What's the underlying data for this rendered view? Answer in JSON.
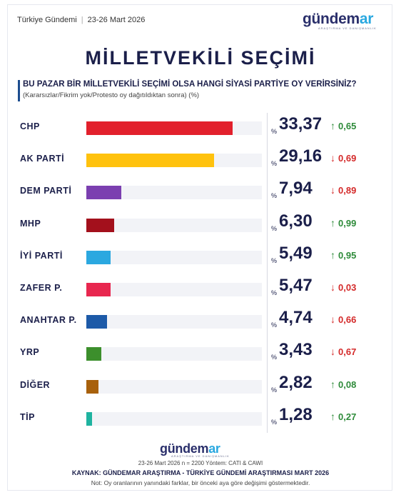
{
  "header": {
    "brand": "Türkiye Gündemi",
    "date": "23-26 Mart 2026",
    "logo_main": "gündem",
    "logo_accent": "ar",
    "logo_sub": "ARAŞTIRMA VE DANIŞMANLIK"
  },
  "title": "MİLLETVEKİLİ SEÇİMİ",
  "question": "BU PAZAR BİR MİLLETVEKİLİ SEÇİMİ OLSA HANGİ SİYASİ PARTİYE OY VERİRSİNİZ?",
  "note": "(Kararsızlar/Fikrim yok/Protesto oy dağıtıldıktan sonra) (%)",
  "chart_data": {
    "type": "bar",
    "orientation": "horizontal",
    "title": "MİLLETVEKİLİ SEÇİMİ",
    "xlim": [
      0,
      40
    ],
    "grid": false,
    "legend": "none",
    "categories": [
      "CHP",
      "AK PARTİ",
      "DEM PARTİ",
      "MHP",
      "İYİ PARTİ",
      "ZAFER P.",
      "ANAHTAR P.",
      "YRP",
      "DİĞER",
      "TİP"
    ],
    "values": [
      33.37,
      29.16,
      7.94,
      6.3,
      5.49,
      5.47,
      4.74,
      3.43,
      2.82,
      1.28
    ],
    "rows": [
      {
        "party": "CHP",
        "value": 33.37,
        "value_label": "33,37",
        "change": "0,65",
        "direction": "up",
        "color": "#e2202c"
      },
      {
        "party": "AK PARTİ",
        "value": 29.16,
        "value_label": "29,16",
        "change": "0,69",
        "direction": "down",
        "color": "#ffc20e"
      },
      {
        "party": "DEM PARTİ",
        "value": 7.94,
        "value_label": "7,94",
        "change": "0,89",
        "direction": "down",
        "color": "#7b3fb0"
      },
      {
        "party": "MHP",
        "value": 6.3,
        "value_label": "6,30",
        "change": "0,99",
        "direction": "up",
        "color": "#a3101c"
      },
      {
        "party": "İYİ PARTİ",
        "value": 5.49,
        "value_label": "5,49",
        "change": "0,95",
        "direction": "up",
        "color": "#2ba8e0"
      },
      {
        "party": "ZAFER P.",
        "value": 5.47,
        "value_label": "5,47",
        "change": "0,03",
        "direction": "down",
        "color": "#e8274f"
      },
      {
        "party": "ANAHTAR P.",
        "value": 4.74,
        "value_label": "4,74",
        "change": "0,66",
        "direction": "down",
        "color": "#1d5aa8"
      },
      {
        "party": "YRP",
        "value": 3.43,
        "value_label": "3,43",
        "change": "0,67",
        "direction": "down",
        "color": "#3c8f2c"
      },
      {
        "party": "DİĞER",
        "value": 2.82,
        "value_label": "2,82",
        "change": "0,08",
        "direction": "up",
        "color": "#a8610c"
      },
      {
        "party": "TİP",
        "value": 1.28,
        "value_label": "1,28",
        "change": "0,27",
        "direction": "up",
        "color": "#1fb3a0"
      }
    ],
    "percent_sign": "%",
    "up_color": "#2e8b3a",
    "down_color": "#d42a2a"
  },
  "footer": {
    "logo_main": "gündem",
    "logo_accent": "ar",
    "logo_sub": "ARAŞTIRMA VE DANIŞMANLIK",
    "meta": "23-26 Mart 2026 n = 2200 Yöntem: CATI & CAWI",
    "source": "KAYNAK: GÜNDEMAR ARAŞTIRMA - TÜRKİYE GÜNDEMİ ARAŞTIRMASI MART 2026",
    "note": "Not: Oy oranlarının yanındaki farklar, bir önceki aya göre değişimi göstermektedir."
  }
}
